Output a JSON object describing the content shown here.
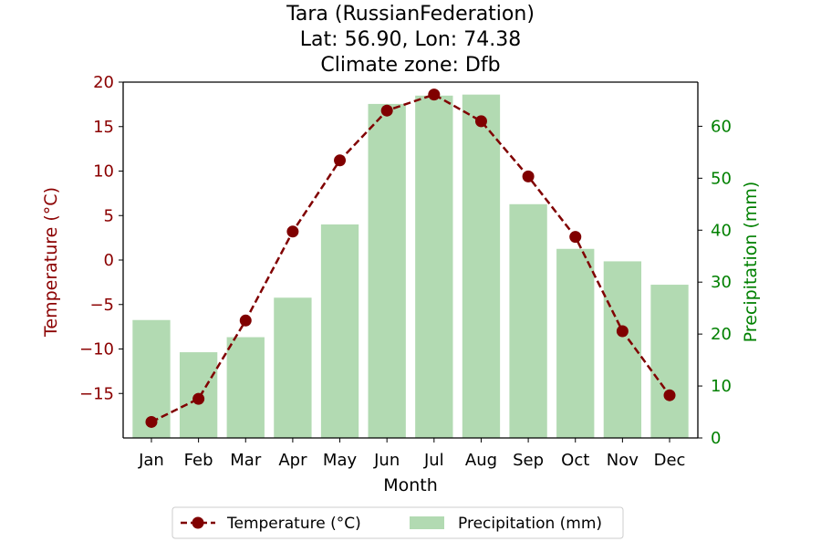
{
  "chart_data": {
    "type": "bar+line",
    "title": "Tara (RussianFederation)",
    "subtitle_lines": [
      "Lat: 56.90, Lon: 74.38",
      "Climate zone: Dfb"
    ],
    "xlabel": "Month",
    "categories": [
      "Jan",
      "Feb",
      "Mar",
      "Apr",
      "May",
      "Jun",
      "Jul",
      "Aug",
      "Sep",
      "Oct",
      "Nov",
      "Dec"
    ],
    "y_left": {
      "label": "Temperature (°C)",
      "ylim": [
        -20,
        20
      ],
      "ticks": [
        20,
        15,
        10,
        5,
        0,
        -5,
        -10,
        -15
      ],
      "tick_labels": [
        "20",
        "15",
        "10",
        "5",
        "0",
        "−5",
        "−10",
        "−15"
      ],
      "color": "#8b0000"
    },
    "y_right": {
      "label": "Precipitation (mm)",
      "ylim": [
        0,
        68.5
      ],
      "ticks": [
        0,
        10,
        20,
        30,
        40,
        50,
        60
      ],
      "tick_labels": [
        "0",
        "10",
        "20",
        "30",
        "40",
        "50",
        "60"
      ],
      "color": "#008000"
    },
    "series": [
      {
        "name": "Temperature (°C)",
        "type": "line",
        "axis": "left",
        "style": "dashed",
        "marker": "circle",
        "color": "#800000",
        "values": [
          -18.2,
          -15.6,
          -6.8,
          3.2,
          11.2,
          16.8,
          18.6,
          15.6,
          9.4,
          2.6,
          -8.0,
          -15.2
        ]
      },
      {
        "name": "Precipitation (mm)",
        "type": "bar",
        "axis": "right",
        "color": "#b2dab2",
        "values": [
          22.7,
          16.5,
          19.4,
          27.0,
          41.1,
          64.3,
          65.9,
          66.1,
          45.0,
          36.4,
          34.0,
          29.5
        ]
      }
    ],
    "legend": {
      "placement": "bottom-center"
    },
    "grid": false
  }
}
